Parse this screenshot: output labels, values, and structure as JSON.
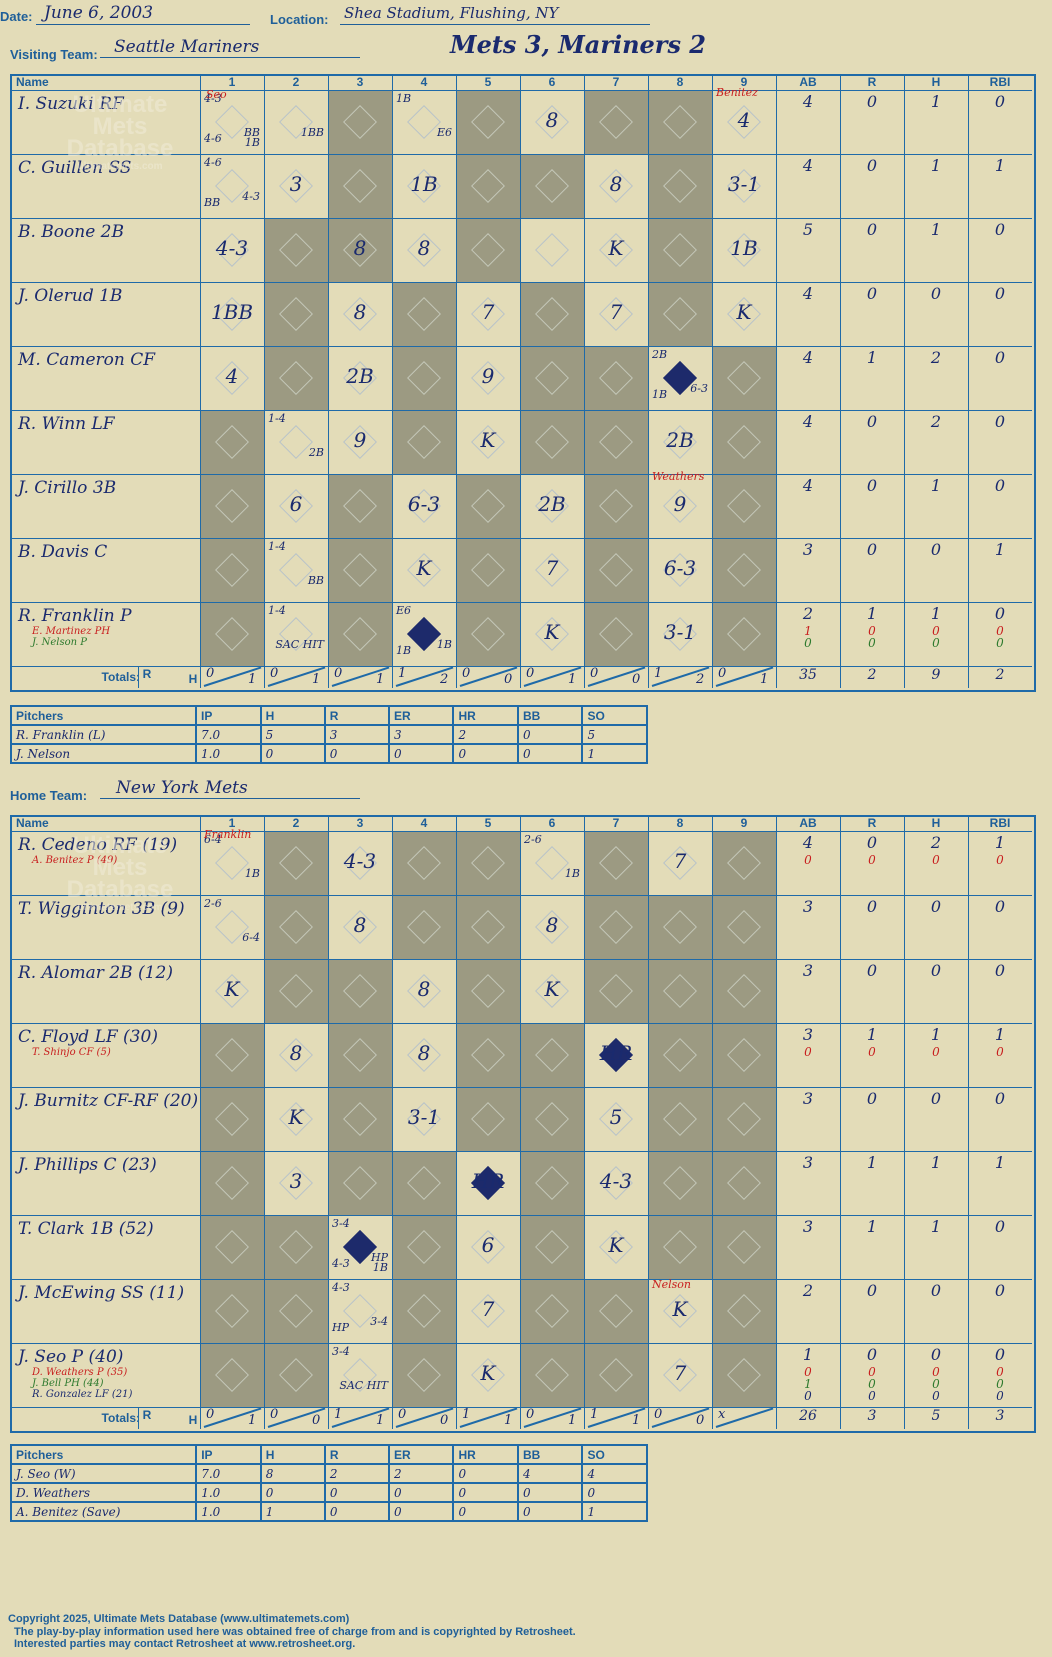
{
  "header": {
    "date_label": "Date:",
    "date": "June 6, 2003",
    "location_label": "Location:",
    "location": "Shea Stadium, Flushing, NY",
    "visiting_label": "Visiting Team:",
    "visiting_team": "Seattle Mariners",
    "game_title": "Mets 3, Mariners 2",
    "home_label": "Home Team:",
    "home_team": "New York Mets"
  },
  "columns": {
    "name": "Name",
    "innings": [
      "1",
      "2",
      "3",
      "4",
      "5",
      "6",
      "7",
      "8",
      "9"
    ],
    "stats": [
      "AB",
      "R",
      "H",
      "RBI"
    ],
    "totals_label": "Totals:",
    "r_label": "R",
    "h_label": "H"
  },
  "watermark": {
    "line1": "Ultimate",
    "line2": "Mets",
    "line3": "Database",
    "line4": "ultimatemets.com"
  },
  "visitors": {
    "players": [
      {
        "name": "I. Suzuki RF",
        "subs": [],
        "stats": [
          [
            "4",
            "0",
            "1",
            "0"
          ]
        ]
      },
      {
        "name": "C. Guillen SS",
        "subs": [],
        "stats": [
          [
            "4",
            "0",
            "1",
            "1"
          ]
        ]
      },
      {
        "name": "B. Boone 2B",
        "subs": [],
        "stats": [
          [
            "5",
            "0",
            "1",
            "0"
          ]
        ]
      },
      {
        "name": "J. Olerud 1B",
        "subs": [],
        "stats": [
          [
            "4",
            "0",
            "0",
            "0"
          ]
        ]
      },
      {
        "name": "M. Cameron CF",
        "subs": [],
        "stats": [
          [
            "4",
            "1",
            "2",
            "0"
          ]
        ]
      },
      {
        "name": "R. Winn LF",
        "subs": [],
        "stats": [
          [
            "4",
            "0",
            "2",
            "0"
          ]
        ]
      },
      {
        "name": "J. Cirillo 3B",
        "subs": [],
        "stats": [
          [
            "4",
            "0",
            "1",
            "0"
          ]
        ]
      },
      {
        "name": "B. Davis C",
        "subs": [],
        "stats": [
          [
            "3",
            "0",
            "0",
            "1"
          ]
        ]
      },
      {
        "name": "R. Franklin P",
        "subs": [
          {
            "name": "E. Martinez PH",
            "color": "red"
          },
          {
            "name": "J. Nelson P",
            "color": "green"
          }
        ],
        "stats": [
          [
            "2",
            "1",
            "1",
            "0"
          ],
          [
            "1",
            "0",
            "0",
            "0"
          ],
          [
            "0",
            "0",
            "0",
            "0"
          ]
        ]
      }
    ],
    "totals": {
      "innings": [
        [
          "0",
          "1"
        ],
        [
          "0",
          "1"
        ],
        [
          "0",
          "1"
        ],
        [
          "1",
          "2"
        ],
        [
          "0",
          "0"
        ],
        [
          "0",
          "1"
        ],
        [
          "0",
          "0"
        ],
        [
          "1",
          "2"
        ],
        [
          "0",
          "1"
        ]
      ],
      "stats": [
        "35",
        "2",
        "9",
        "2"
      ]
    },
    "pitchers_header": [
      "Pitchers",
      "IP",
      "H",
      "R",
      "ER",
      "HR",
      "BB",
      "SO"
    ],
    "pitchers": [
      [
        "R. Franklin (L)",
        "7.0",
        "5",
        "3",
        "3",
        "2",
        "0",
        "5"
      ],
      [
        "J. Nelson",
        "1.0",
        "0",
        "0",
        "0",
        "0",
        "0",
        "1"
      ]
    ]
  },
  "home": {
    "players": [
      {
        "name": "R. Cedeno RF (19)",
        "subs": [
          {
            "name": "A. Benitez P (49)",
            "color": "red"
          }
        ],
        "stats": [
          [
            "4",
            "0",
            "2",
            "1"
          ],
          [
            "0",
            "0",
            "0",
            "0"
          ]
        ]
      },
      {
        "name": "T. Wigginton 3B (9)",
        "subs": [],
        "stats": [
          [
            "3",
            "0",
            "0",
            "0"
          ]
        ]
      },
      {
        "name": "R. Alomar 2B (12)",
        "subs": [],
        "stats": [
          [
            "3",
            "0",
            "0",
            "0"
          ]
        ]
      },
      {
        "name": "C. Floyd LF (30)",
        "subs": [
          {
            "name": "T. Shinjo CF (5)",
            "color": "red"
          }
        ],
        "stats": [
          [
            "3",
            "1",
            "1",
            "1"
          ],
          [
            "0",
            "0",
            "0",
            "0"
          ]
        ]
      },
      {
        "name": "J. Burnitz CF-RF (20)",
        "subs": [],
        "stats": [
          [
            "3",
            "0",
            "0",
            "0"
          ]
        ]
      },
      {
        "name": "J. Phillips C (23)",
        "subs": [],
        "stats": [
          [
            "3",
            "1",
            "1",
            "1"
          ]
        ]
      },
      {
        "name": "T. Clark 1B (52)",
        "subs": [],
        "stats": [
          [
            "3",
            "1",
            "1",
            "0"
          ]
        ]
      },
      {
        "name": "J. McEwing SS (11)",
        "subs": [],
        "stats": [
          [
            "2",
            "0",
            "0",
            "0"
          ]
        ]
      },
      {
        "name": "J. Seo P (40)",
        "subs": [
          {
            "name": "D. Weathers P (35)",
            "color": "red"
          },
          {
            "name": "J. Bell PH (44)",
            "color": "green"
          },
          {
            "name": "R. Gonzalez LF (21)",
            "color": "blue"
          }
        ],
        "stats": [
          [
            "1",
            "0",
            "0",
            "0"
          ],
          [
            "0",
            "0",
            "0",
            "0"
          ],
          [
            "1",
            "0",
            "0",
            "0"
          ],
          [
            "0",
            "0",
            "0",
            "0"
          ]
        ]
      }
    ],
    "totals": {
      "innings": [
        [
          "0",
          "1"
        ],
        [
          "0",
          "0"
        ],
        [
          "1",
          "1"
        ],
        [
          "0",
          "0"
        ],
        [
          "1",
          "1"
        ],
        [
          "0",
          "1"
        ],
        [
          "1",
          "1"
        ],
        [
          "0",
          "0"
        ],
        [
          "x",
          ""
        ]
      ],
      "stats": [
        "26",
        "3",
        "5",
        "3"
      ]
    },
    "pitchers_header": [
      "Pitchers",
      "IP",
      "H",
      "R",
      "ER",
      "HR",
      "BB",
      "SO"
    ],
    "pitchers": [
      [
        "J. Seo (W)",
        "7.0",
        "8",
        "2",
        "2",
        "0",
        "4",
        "4"
      ],
      [
        "D. Weathers",
        "1.0",
        "0",
        "0",
        "0",
        "0",
        "0",
        "0"
      ],
      [
        "A. Benitez (Save)",
        "1.0",
        "1",
        "0",
        "0",
        "0",
        "0",
        "1"
      ]
    ]
  },
  "plays": {
    "visitors": [
      [
        [
          "4-3",
          "BB",
          "4-6",
          "1B"
        ],
        [
          "",
          "1BB"
        ],
        [],
        [
          "1B",
          "E6"
        ],
        [],
        [
          "8"
        ],
        [],
        [],
        [
          "4"
        ]
      ],
      [
        [
          "4-6",
          "4-3",
          "BB"
        ],
        [
          "3"
        ],
        [],
        [
          "1B"
        ],
        [],
        [],
        [
          "8"
        ],
        [],
        [
          "3-1"
        ]
      ],
      [
        [
          "4-3"
        ],
        [],
        [
          "8"
        ],
        [
          "8"
        ],
        [],
        [],
        [
          "K"
        ],
        [],
        [
          "1B"
        ]
      ],
      [
        [
          "1BB"
        ],
        [],
        [
          "8"
        ],
        [],
        [
          "7"
        ],
        [],
        [
          "7"
        ],
        [],
        [
          "K"
        ]
      ],
      [
        [
          "4"
        ],
        [],
        [
          "2B"
        ],
        [],
        [
          "9"
        ],
        [],
        [],
        [
          "2B",
          "6-3",
          "1B"
        ],
        []
      ],
      [
        [],
        [
          "1-4",
          "2B"
        ],
        [
          "9"
        ],
        [],
        [
          "K"
        ],
        [],
        [],
        [
          "2B"
        ],
        []
      ],
      [
        [],
        [
          "6"
        ],
        [],
        [
          "6-3"
        ],
        [],
        [
          "2B"
        ],
        [],
        [
          "9"
        ],
        []
      ],
      [
        [],
        [
          "1-4",
          "BB"
        ],
        [],
        [
          "K"
        ],
        [],
        [
          "7"
        ],
        [],
        [
          "6-3"
        ],
        []
      ],
      [
        [],
        [
          "1-4",
          "SAC HIT"
        ],
        [],
        [
          "E6",
          "1B",
          "1B"
        ],
        [],
        [
          "K"
        ],
        [],
        [
          "3-1"
        ],
        []
      ]
    ],
    "home": [
      [
        [
          "6-4",
          "1B"
        ],
        [],
        [
          "4-3"
        ],
        [],
        [],
        [
          "2-6",
          "1B"
        ],
        [],
        [
          "7"
        ],
        []
      ],
      [
        [
          "2-6",
          "6-4"
        ],
        [],
        [
          "8"
        ],
        [],
        [],
        [
          "8"
        ],
        [],
        [],
        []
      ],
      [
        [
          "K"
        ],
        [],
        [],
        [
          "8"
        ],
        [],
        [
          "K"
        ],
        [],
        [],
        []
      ],
      [
        [],
        [
          "8"
        ],
        [],
        [
          "8"
        ],
        [],
        [],
        [
          "HR"
        ],
        [],
        []
      ],
      [
        [],
        [
          "K"
        ],
        [],
        [
          "3-1"
        ],
        [],
        [],
        [
          "5"
        ],
        [],
        []
      ],
      [
        [],
        [
          "3"
        ],
        [],
        [],
        [
          "HR"
        ],
        [],
        [
          "4-3"
        ],
        [],
        []
      ],
      [
        [],
        [],
        [
          "3-4",
          "HP",
          "4-3",
          "1B"
        ],
        [],
        [
          "6"
        ],
        [],
        [
          "K"
        ],
        [],
        []
      ],
      [
        [],
        [],
        [
          "4-3",
          "3-4",
          "HP"
        ],
        [],
        [
          "7"
        ],
        [],
        [],
        [
          "K"
        ],
        []
      ],
      [
        [],
        [],
        [
          "3-4",
          "SAC HIT"
        ],
        [],
        [
          "K"
        ],
        [],
        [],
        [
          "7"
        ],
        []
      ]
    ],
    "pitching_changes": {
      "v_top": "Seo",
      "v_benitez": "Benitez",
      "v_weathers": "Weathers",
      "h_franklin": "Franklin",
      "h_nelson": "Nelson"
    }
  },
  "footer": {
    "line1": "Copyright 2025, Ultimate Mets Database (www.ultimatemets.com)",
    "line2": "The play-by-play information used here was obtained free of charge from and is copyrighted by Retrosheet.",
    "line3": "Interested parties may contact Retrosheet at www.retrosheet.org."
  }
}
